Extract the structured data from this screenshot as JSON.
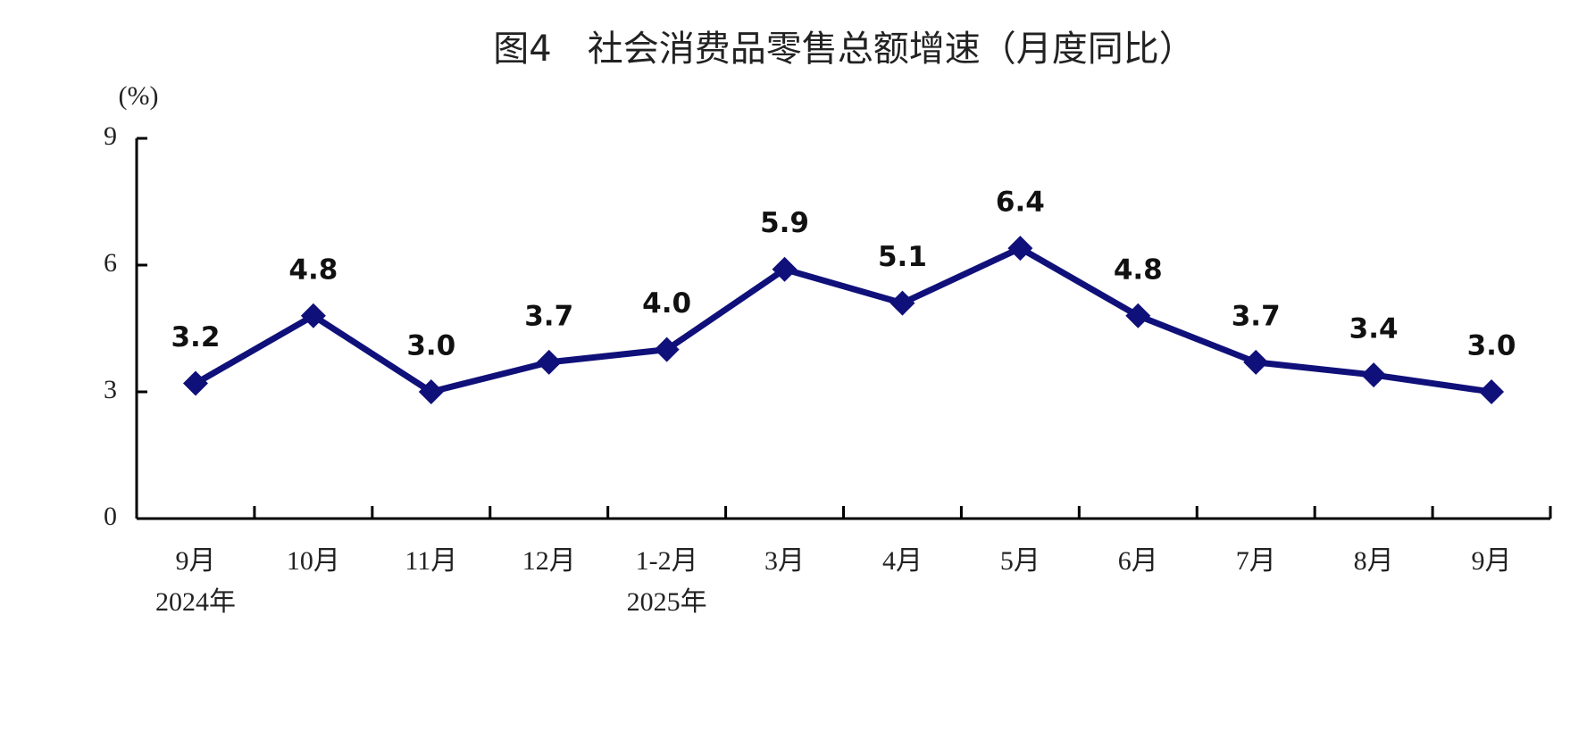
{
  "chart_data": {
    "type": "line",
    "title": "图4　社会消费品零售总额增速（月度同比）",
    "y_unit": "(%)",
    "categories": [
      "9月",
      "10月",
      "11月",
      "12月",
      "1-2月",
      "3月",
      "4月",
      "5月",
      "6月",
      "7月",
      "8月",
      "9月"
    ],
    "year_labels": [
      "2024年",
      null,
      null,
      null,
      "2025年",
      null,
      null,
      null,
      null,
      null,
      null,
      null
    ],
    "values": [
      3.2,
      4.8,
      3.0,
      3.7,
      4.0,
      5.9,
      5.1,
      6.4,
      4.8,
      3.7,
      3.4,
      3.0
    ],
    "value_labels": [
      "3.2",
      "4.8",
      "3.0",
      "3.7",
      "4.0",
      "5.9",
      "5.1",
      "6.4",
      "4.8",
      "3.7",
      "3.4",
      "3.0"
    ],
    "color": "#10107a",
    "ylim": [
      0,
      9
    ],
    "yticks": [
      0,
      3,
      6,
      9
    ],
    "grid": false
  }
}
